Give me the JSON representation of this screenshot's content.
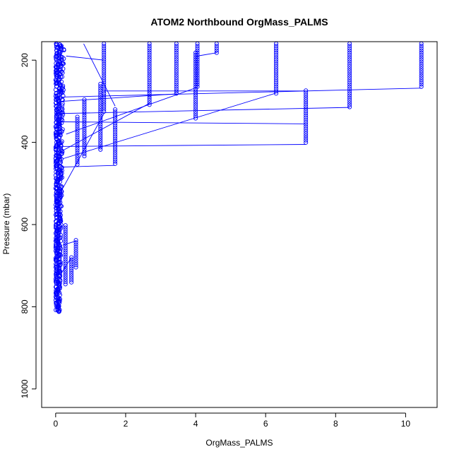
{
  "chart_data": {
    "type": "scatter",
    "title": "ATOM2 Northbound OrgMass_PALMS",
    "xlabel": "OrgMass_PALMS",
    "ylabel": "Pressure (mbar)",
    "xlim": [
      -0.4,
      10.9
    ],
    "ylim": [
      1045,
      155
    ],
    "y_inverted": true,
    "x_ticks": [
      0,
      2,
      4,
      6,
      8,
      10
    ],
    "y_ticks": [
      200,
      400,
      600,
      800,
      1000
    ],
    "grid": false,
    "legend": "none",
    "colors": {
      "series": "#0000ff",
      "axis": "#000000",
      "background": "#ffffff"
    },
    "columns": [
      {
        "x": 10.45,
        "p_top": 160,
        "p_bottom": 268
      },
      {
        "x": 8.4,
        "p_top": 160,
        "p_bottom": 314
      },
      {
        "x": 7.15,
        "p_top": 274,
        "p_bottom": 405
      },
      {
        "x": 6.3,
        "p_top": 160,
        "p_bottom": 282
      },
      {
        "x": 4.6,
        "p_top": 160,
        "p_bottom": 182
      },
      {
        "x": 4.05,
        "p_top": 160,
        "p_bottom": 266
      },
      {
        "x": 4.0,
        "p_top": 182,
        "p_bottom": 344
      },
      {
        "x": 3.45,
        "p_top": 160,
        "p_bottom": 282
      },
      {
        "x": 2.68,
        "p_top": 160,
        "p_bottom": 312
      },
      {
        "x": 1.7,
        "p_top": 320,
        "p_bottom": 456
      },
      {
        "x": 1.38,
        "p_top": 160,
        "p_bottom": 330
      },
      {
        "x": 1.28,
        "p_top": 258,
        "p_bottom": 422
      },
      {
        "x": 0.82,
        "p_top": 296,
        "p_bottom": 438
      },
      {
        "x": 0.62,
        "p_top": 338,
        "p_bottom": 458
      },
      {
        "x": 0.58,
        "p_top": 638,
        "p_bottom": 705
      },
      {
        "x": 0.45,
        "p_top": 680,
        "p_bottom": 742
      },
      {
        "x": 0.28,
        "p_top": 602,
        "p_bottom": 750
      }
    ],
    "dense_cluster": {
      "x_range": [
        0.0,
        0.25
      ],
      "p_range": [
        160,
        810
      ]
    },
    "segments": [
      [
        0.05,
        290,
        10.45,
        268
      ],
      [
        0.1,
        410,
        7.15,
        405
      ],
      [
        0.1,
        350,
        7.15,
        355
      ],
      [
        0.2,
        460,
        1.7,
        456
      ],
      [
        0.3,
        380,
        4.05,
        266
      ],
      [
        0.05,
        330,
        8.4,
        315
      ],
      [
        1.38,
        275,
        7.15,
        275
      ],
      [
        0.2,
        440,
        6.3,
        280
      ],
      [
        0.8,
        160,
        1.7,
        312
      ],
      [
        0.3,
        190,
        1.38,
        200
      ],
      [
        0.2,
        300,
        3.45,
        282
      ],
      [
        0.2,
        420,
        2.68,
        305
      ],
      [
        4.05,
        190,
        4.6,
        182
      ],
      [
        0.15,
        520,
        1.38,
        330
      ],
      [
        0.2,
        650,
        0.58,
        640
      ],
      [
        0.15,
        720,
        0.45,
        680
      ]
    ]
  }
}
